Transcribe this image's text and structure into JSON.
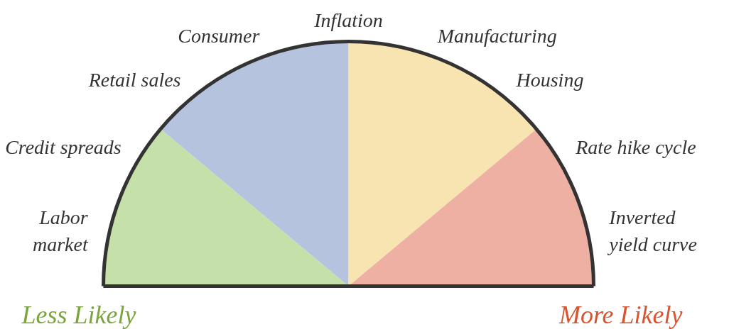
{
  "chart_data": {
    "type": "pie",
    "categories": [
      null,
      null,
      null,
      null
    ],
    "values": [
      22.2,
      27.8,
      27.8,
      22.2
    ],
    "colors": [
      "#c5e0a9",
      "#b5c3de",
      "#f8e4b0",
      "#eeb0a3"
    ],
    "annotations": [
      "Labor\nmarket",
      "Credit spreads",
      "Retail sales",
      "Consumer",
      "Inflation",
      "Manufacturing",
      "Housing",
      "Rate hike cycle",
      "Inverted\nyield curve",
      "Less Likely",
      "More Likely"
    ]
  }
}
